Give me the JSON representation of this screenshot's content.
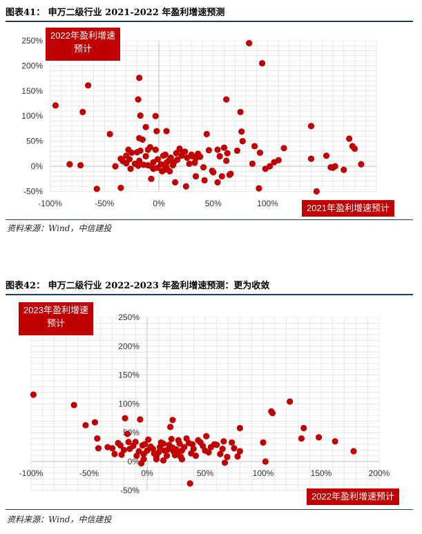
{
  "figures": [
    {
      "title": "图表41： 申万二级行业 2021-2022 年盈利增速预测",
      "source": "资料来源：Wind，中信建投",
      "x_axis_label": "2021年盈利增速预计",
      "y_axis_label_line1": "2022年盈利增速",
      "y_axis_label_line2": "预计"
    },
    {
      "title": "图表42： 申万二级行业 2022-2023 年盈利增速预测：更为收敛",
      "source": "资料来源：Wind，中信建投",
      "x_axis_label": "2022年盈利增速预计",
      "y_axis_label_line1": "2023年盈利增速",
      "y_axis_label_line2": "预计"
    }
  ],
  "colors": {
    "marker": "#c00000",
    "accent_box": "#c00000",
    "rule": "#1f3864",
    "grid": "#d9d9d9"
  },
  "chart_data": [
    {
      "type": "scatter",
      "xlim": [
        -100,
        200
      ],
      "ylim": [
        -50,
        250
      ],
      "grid": true,
      "x_ticks": [
        "-100%",
        "-50%",
        "0%",
        "50%",
        "100%"
      ],
      "y_ticks": [
        "250%",
        "200%",
        "150%",
        "100%",
        "50%",
        "0%",
        "-50%"
      ],
      "x_tick_values": [
        -100,
        -50,
        0,
        50,
        100
      ],
      "y_tick_values": [
        250,
        200,
        150,
        100,
        50,
        0,
        -50
      ],
      "xlabel": "2021年盈利增速预计",
      "ylabel": "2022年盈利增速预计",
      "points": [
        [
          83,
          245
        ],
        [
          95,
          205
        ],
        [
          -65,
          161
        ],
        [
          -95,
          121
        ],
        [
          -70,
          108
        ],
        [
          -18,
          176
        ],
        [
          -19,
          133
        ],
        [
          -17,
          101
        ],
        [
          -3,
          100
        ],
        [
          62,
          133
        ],
        [
          75,
          108
        ],
        [
          -45,
          64
        ],
        [
          -12,
          78
        ],
        [
          -2,
          70
        ],
        [
          -18,
          56
        ],
        [
          -15,
          53
        ],
        [
          7,
          70
        ],
        [
          -20,
          28
        ],
        [
          -17,
          31
        ],
        [
          -8,
          38
        ],
        [
          -10,
          33
        ],
        [
          -3,
          33
        ],
        [
          -12,
          20
        ],
        [
          -18,
          11
        ],
        [
          -22,
          5
        ],
        [
          -19,
          1
        ],
        [
          -14,
          3
        ],
        [
          -25,
          27
        ],
        [
          -28,
          33
        ],
        [
          -30,
          21
        ],
        [
          -27,
          14
        ],
        [
          -30,
          6
        ],
        [
          -33,
          10
        ],
        [
          -35,
          15
        ],
        [
          -26,
          -5
        ],
        [
          -40,
          0
        ],
        [
          -10,
          2
        ],
        [
          -5,
          8
        ],
        [
          -1,
          14
        ],
        [
          2,
          4
        ],
        [
          4,
          21
        ],
        [
          6,
          23
        ],
        [
          7,
          7
        ],
        [
          9,
          11
        ],
        [
          11,
          17
        ],
        [
          13,
          2
        ],
        [
          14,
          8
        ],
        [
          16,
          26
        ],
        [
          17,
          13
        ],
        [
          19,
          35
        ],
        [
          21,
          21
        ],
        [
          22,
          28
        ],
        [
          24,
          29
        ],
        [
          26,
          17
        ],
        [
          28,
          5
        ],
        [
          30,
          23
        ],
        [
          31,
          20
        ],
        [
          33,
          7
        ],
        [
          34,
          16
        ],
        [
          36,
          25
        ],
        [
          38,
          19
        ],
        [
          41,
          -2
        ],
        [
          44,
          64
        ],
        [
          46,
          32
        ],
        [
          49,
          -9
        ],
        [
          50,
          -12
        ],
        [
          54,
          -32
        ],
        [
          54,
          33
        ],
        [
          56,
          20
        ],
        [
          60,
          37
        ],
        [
          62,
          11
        ],
        [
          63,
          26
        ],
        [
          65,
          -17
        ],
        [
          66,
          -15
        ],
        [
          72,
          31
        ],
        [
          76,
          69
        ],
        [
          77,
          50
        ],
        [
          86,
          5
        ],
        [
          88,
          40
        ],
        [
          93,
          27
        ],
        [
          98,
          -5
        ],
        [
          102,
          0
        ],
        [
          106,
          8
        ],
        [
          110,
          12
        ],
        [
          115,
          36
        ],
        [
          140,
          15
        ],
        [
          140,
          80
        ],
        [
          145,
          -50
        ],
        [
          154,
          21
        ],
        [
          158,
          -2
        ],
        [
          160,
          -3
        ],
        [
          162,
          0
        ],
        [
          170,
          -7
        ],
        [
          175,
          55
        ],
        [
          178,
          40
        ],
        [
          180,
          35
        ],
        [
          186,
          4
        ],
        [
          -82,
          4
        ],
        [
          -72,
          2
        ],
        [
          -57,
          -45
        ],
        [
          -35,
          -43
        ],
        [
          -7,
          -25
        ],
        [
          3,
          -10
        ],
        [
          7,
          -2
        ],
        [
          15,
          -32
        ],
        [
          25,
          -40
        ],
        [
          34,
          -20
        ],
        [
          42,
          -28
        ],
        [
          58,
          -20
        ],
        [
          92,
          -44
        ],
        [
          -1,
          -3
        ],
        [
          -5,
          -5
        ],
        [
          10,
          -10
        ],
        [
          5,
          -7
        ],
        [
          -6,
          -2
        ]
      ]
    },
    {
      "type": "scatter",
      "xlim": [
        -100,
        200
      ],
      "ylim": [
        -50,
        250
      ],
      "grid": true,
      "x_ticks": [
        "-100%",
        "-50%",
        "0%",
        "50%",
        "100%",
        "150%",
        "200%"
      ],
      "y_ticks": [
        "250%",
        "200%",
        "150%",
        "100%",
        "50%",
        "0%",
        "-50%"
      ],
      "x_tick_values": [
        -100,
        -50,
        0,
        50,
        100,
        150,
        200
      ],
      "y_tick_values": [
        250,
        200,
        150,
        100,
        50,
        0,
        -50
      ],
      "xlabel": "2022年盈利增速预计",
      "ylabel": "2023年盈利增速预计",
      "points": [
        [
          -98,
          116
        ],
        [
          -63,
          98
        ],
        [
          -45,
          68
        ],
        [
          -53,
          63
        ],
        [
          -43,
          40
        ],
        [
          -42,
          23
        ],
        [
          -34,
          25
        ],
        [
          -30,
          23
        ],
        [
          -25,
          32
        ],
        [
          -19,
          75
        ],
        [
          -6,
          73
        ],
        [
          -17,
          48
        ],
        [
          -16,
          34
        ],
        [
          -10,
          34
        ],
        [
          -7,
          18
        ],
        [
          -3,
          13
        ],
        [
          -9,
          10
        ],
        [
          -12,
          27
        ],
        [
          -15,
          22
        ],
        [
          -20,
          20
        ],
        [
          -22,
          12
        ],
        [
          -23,
          28
        ],
        [
          -28,
          13
        ],
        [
          -4,
          28
        ],
        [
          -2,
          30
        ],
        [
          0,
          19
        ],
        [
          1,
          38
        ],
        [
          3,
          26
        ],
        [
          5,
          22
        ],
        [
          6,
          14
        ],
        [
          8,
          9
        ],
        [
          10,
          16
        ],
        [
          11,
          25
        ],
        [
          12,
          33
        ],
        [
          14,
          31
        ],
        [
          15,
          19
        ],
        [
          17,
          10
        ],
        [
          18,
          21
        ],
        [
          19,
          29
        ],
        [
          21,
          39
        ],
        [
          22,
          24
        ],
        [
          23,
          17
        ],
        [
          24,
          11
        ],
        [
          25,
          21
        ],
        [
          26,
          13
        ],
        [
          27,
          37
        ],
        [
          28,
          31
        ],
        [
          29,
          8
        ],
        [
          30,
          19
        ],
        [
          32,
          25
        ],
        [
          34,
          40
        ],
        [
          36,
          32
        ],
        [
          38,
          14
        ],
        [
          39,
          30
        ],
        [
          40,
          22
        ],
        [
          42,
          10
        ],
        [
          44,
          37
        ],
        [
          46,
          33
        ],
        [
          48,
          27
        ],
        [
          50,
          19
        ],
        [
          51,
          44
        ],
        [
          53,
          16
        ],
        [
          55,
          25
        ],
        [
          58,
          30
        ],
        [
          60,
          29
        ],
        [
          63,
          13
        ],
        [
          65,
          22
        ],
        [
          66,
          35
        ],
        [
          67,
          -2
        ],
        [
          69,
          8
        ],
        [
          73,
          33
        ],
        [
          75,
          23
        ],
        [
          78,
          9
        ],
        [
          80,
          58
        ],
        [
          80,
          18
        ],
        [
          100,
          33
        ],
        [
          102,
          0
        ],
        [
          107,
          87
        ],
        [
          108,
          84
        ],
        [
          123,
          104
        ],
        [
          133,
          40
        ],
        [
          135,
          58
        ],
        [
          148,
          42
        ],
        [
          162,
          35
        ],
        [
          178,
          18
        ],
        [
          22,
          72
        ],
        [
          20,
          60
        ],
        [
          37,
          -38
        ],
        [
          -5,
          -3
        ],
        [
          8,
          4
        ],
        [
          30,
          4
        ],
        [
          -3,
          4
        ],
        [
          14,
          2
        ]
      ]
    }
  ]
}
